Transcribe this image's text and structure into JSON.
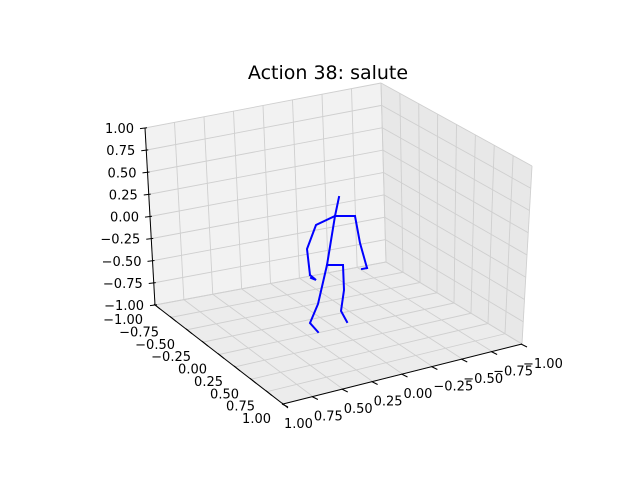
{
  "chart_data": {
    "type": "skeleton-3d",
    "title": "Action 38: salute",
    "line_color": "#0000ff",
    "grid": true,
    "z_ticks": [
      "1.00",
      "0.75",
      "0.50",
      "0.25",
      "0.00",
      "−0.25",
      "−0.50",
      "−0.75",
      "−1.00"
    ],
    "left_ticks": [
      "−1.00",
      "−0.75",
      "−0.50",
      "−0.25",
      "0.00",
      "0.25",
      "0.50",
      "0.75",
      "1.00"
    ],
    "right_ticks": [
      "1.00",
      "0.75",
      "0.50",
      "0.25",
      "0.00",
      "−0.25",
      "−0.50",
      "−0.75",
      "−1.00"
    ],
    "xlim": [
      -1,
      1
    ],
    "ylim": [
      -1,
      1
    ],
    "zlim": [
      -1,
      1
    ]
  }
}
